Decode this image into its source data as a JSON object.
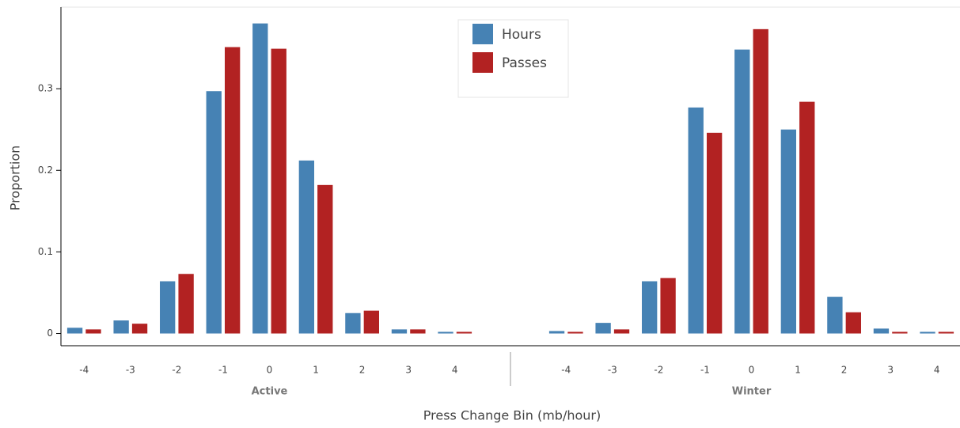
{
  "chart_data": {
    "type": "bar",
    "xlabel": "Press Change Bin (mb/hour)",
    "ylabel": "Proportion",
    "groups": [
      {
        "name": "Active",
        "categories": [
          "-4",
          "-3",
          "-2",
          "-1",
          "0",
          "1",
          "2",
          "3",
          "4"
        ]
      },
      {
        "name": "Winter",
        "categories": [
          "-4",
          "-3",
          "-2",
          "-1",
          "0",
          "1",
          "2",
          "3",
          "4"
        ]
      }
    ],
    "series": [
      {
        "name": "Hours",
        "color": "#4682b4",
        "values": [
          [
            0.007,
            0.016,
            0.064,
            0.297,
            0.38,
            0.212,
            0.025,
            0.005,
            0.002
          ],
          [
            0.003,
            0.013,
            0.064,
            0.277,
            0.348,
            0.25,
            0.045,
            0.006,
            0.002
          ]
        ]
      },
      {
        "name": "Passes",
        "color": "#b22222",
        "values": [
          [
            0.005,
            0.012,
            0.073,
            0.351,
            0.349,
            0.182,
            0.028,
            0.005,
            0.002
          ],
          [
            0.002,
            0.005,
            0.068,
            0.246,
            0.373,
            0.284,
            0.026,
            0.002,
            0.002
          ]
        ]
      }
    ],
    "ylim": [
      -0.015,
      0.4
    ],
    "yticks": [
      0,
      0.1,
      0.2,
      0.3
    ],
    "legend": "top-center"
  }
}
